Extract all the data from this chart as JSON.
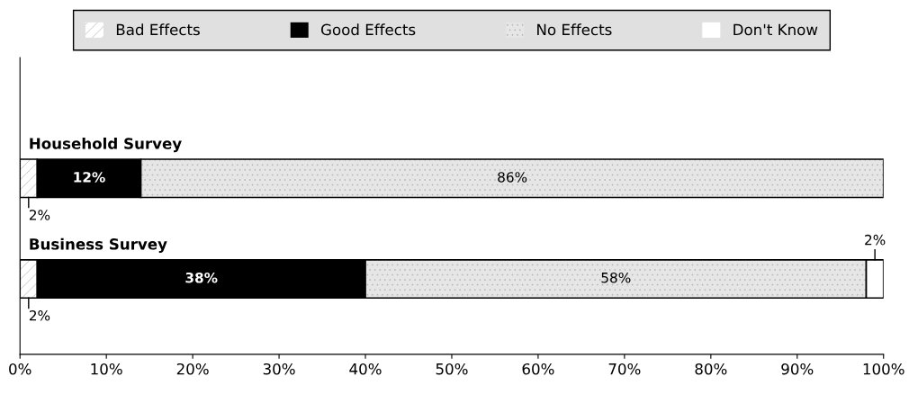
{
  "chart_data": {
    "type": "bar",
    "orientation": "horizontal",
    "stacked": true,
    "categories": [
      "Household Survey",
      "Business Survey"
    ],
    "series": [
      {
        "name": "Bad Effects",
        "color": "#ffffff",
        "values": [
          2,
          2
        ],
        "value_labels": [
          "2%",
          "2%"
        ]
      },
      {
        "name": "Good Effects",
        "color": "#000000",
        "values": [
          12,
          38
        ],
        "value_labels": [
          "12%",
          "38%"
        ]
      },
      {
        "name": "No Effects",
        "color": "#e6e6e6",
        "values": [
          86,
          58
        ],
        "value_labels": [
          "86%",
          "58%"
        ]
      },
      {
        "name": "Don't Know",
        "color": "#ffffff",
        "values": [
          null,
          2
        ],
        "value_labels": [
          null,
          "2%"
        ]
      }
    ],
    "xlim": [
      0,
      100
    ],
    "xticks": [
      {
        "value": 0,
        "label": "0%"
      },
      {
        "value": 10,
        "label": "10%"
      },
      {
        "value": 20,
        "label": "20%"
      },
      {
        "value": 30,
        "label": "30%"
      },
      {
        "value": 40,
        "label": "40%"
      },
      {
        "value": 50,
        "label": "50%"
      },
      {
        "value": 60,
        "label": "60%"
      },
      {
        "value": 70,
        "label": "70%"
      },
      {
        "value": 80,
        "label": "80%"
      },
      {
        "value": 90,
        "label": "90%"
      },
      {
        "value": 100,
        "label": "100%"
      }
    ],
    "tick_labels": "x",
    "legend": "top",
    "grid": false
  }
}
